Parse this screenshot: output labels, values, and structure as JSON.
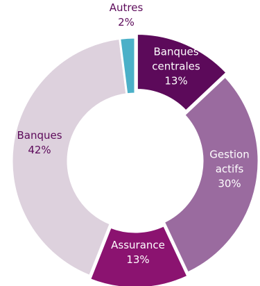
{
  "chart_data": {
    "type": "pie",
    "title": "",
    "categories": [
      "Banques centrales",
      "Gestion actifs",
      "Assurance",
      "Banques",
      "Autres"
    ],
    "values": [
      13,
      30,
      13,
      42,
      2
    ],
    "labels": [
      {
        "name_lines": [
          "Banques",
          "centrales"
        ],
        "value_text": "13%"
      },
      {
        "name_lines": [
          "Gestion",
          "actifs"
        ],
        "value_text": "30%"
      },
      {
        "name_lines": [
          "Assurance"
        ],
        "value_text": "13%"
      },
      {
        "name_lines": [
          "Banques"
        ],
        "value_text": "42%"
      },
      {
        "name_lines": [
          "Autres"
        ],
        "value_text": "2%"
      }
    ],
    "colors": [
      "#5c0a5a",
      "#9a6b9f",
      "#8b1370",
      "#ddd1dd",
      "#4bb0c8"
    ],
    "label_colors": [
      "#ffffff",
      "#ffffff",
      "#ffffff",
      "#5c0a5a",
      "#5c0a5a"
    ],
    "donut": true
  }
}
